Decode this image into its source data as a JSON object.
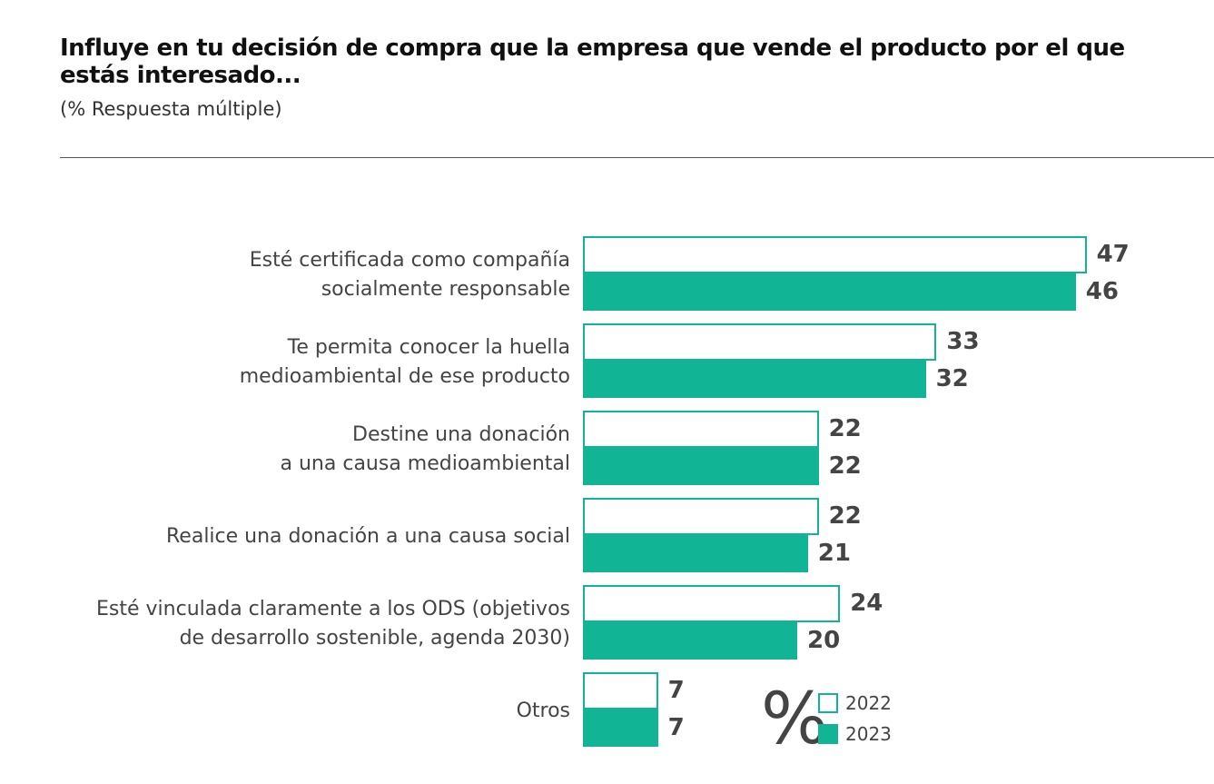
{
  "title": "Influye en tu decisión de compra que la empresa que vende el producto por el que estás interesado...",
  "subtitle": "(% Respuesta múltiple)",
  "unit_symbol": "%",
  "colors": {
    "accent": "#12b496",
    "text": "#444444"
  },
  "chart_data": {
    "type": "bar",
    "orientation": "horizontal",
    "categories": [
      [
        "Esté certificada como compañía",
        "socialmente responsable"
      ],
      [
        "Te permita conocer la huella",
        "medioambiental de ese producto"
      ],
      [
        "Destine una donación",
        "a una causa medioambiental"
      ],
      [
        "Realice una donación a una causa social"
      ],
      [
        "Esté vinculada claramente a los ODS (objetivos",
        "de desarrollo sostenible, agenda 2030)"
      ],
      [
        "Otros"
      ]
    ],
    "series": [
      {
        "name": "2022",
        "values": [
          47,
          33,
          22,
          22,
          24,
          7
        ]
      },
      {
        "name": "2023",
        "values": [
          46,
          32,
          22,
          21,
          20,
          7
        ]
      }
    ],
    "legend": {
      "position": "bottom-right",
      "entries": [
        "2022",
        "2023"
      ]
    },
    "grid": false
  }
}
